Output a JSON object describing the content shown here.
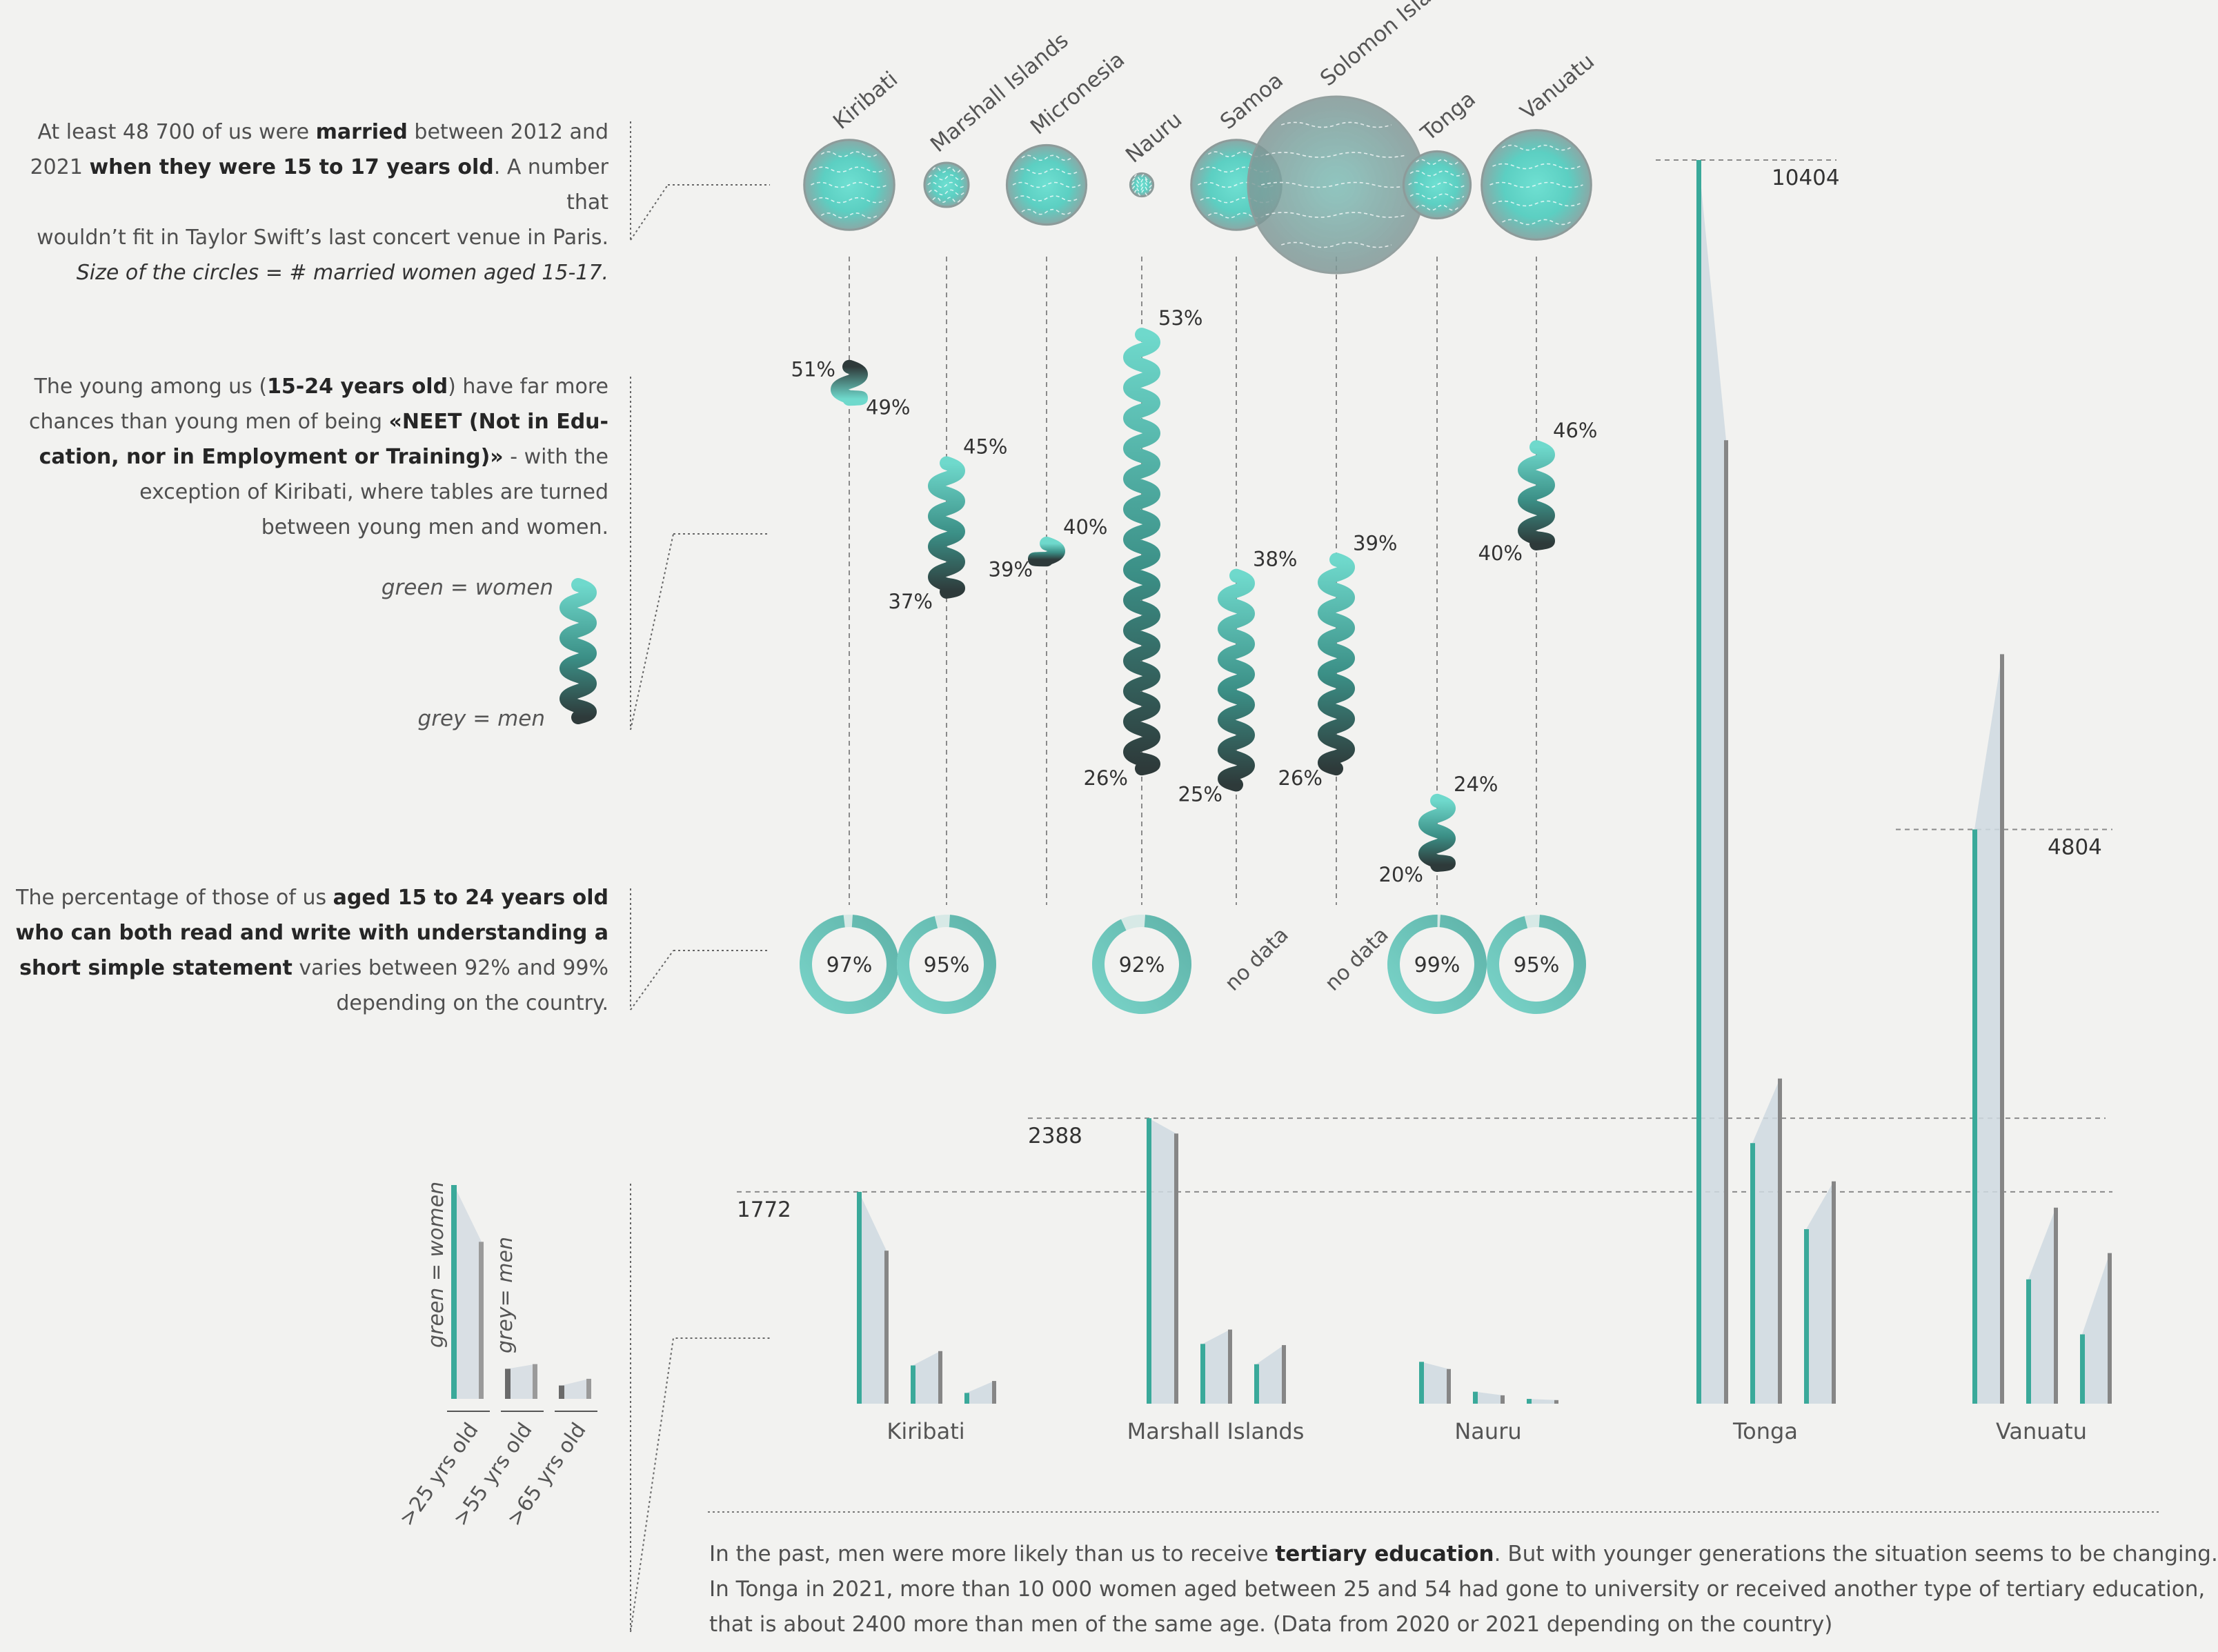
{
  "annotations": {
    "marriage": {
      "l1a": "At least 48 700 of us were ",
      "l1b": "married",
      "l1c": " between 2012 and",
      "l2a": "2021 ",
      "l2b": "when they were 15 to 17 years old",
      "l2c": ". A number that",
      "l3": "wouldn’t fit in Taylor Swift’s last concert venue in Paris.",
      "l4": "Size of the circles = # married women aged 15-17."
    },
    "neet": {
      "l1a": "The young among us (",
      "l1b": "15-24 years old",
      "l1c": ") have far more",
      "l2a": "chances than young men of being ",
      "l2b": "«NEET (Not in Edu-",
      "l3a": "cation, nor in Employment or Training)»",
      "l3b": " - with the",
      "l4": "exception of Kiribati, where tables are turned",
      "l5": "between young men and women."
    },
    "literacy": {
      "l1a": "The percentage of those of us ",
      "l1b": "aged 15 to 24 years old",
      "l2": "who can both read and write with understanding a",
      "l3a": "short simple statement",
      "l3b": " varies between 92% and 99%",
      "l4": "depending on the country."
    },
    "tertiary": {
      "l1a": "In the past, men were more likely than us to receive ",
      "l1b": "tertiary education",
      "l1c": ". But with younger generations the situation seems to be changing.",
      "l2": "In Tonga in 2021, more than 10 000 women aged between 25 and 54 had gone to university or received another type of tertiary education,",
      "l3": "that is about 2400 more than men of the same age.   (Data from 2020 or 2021 depending on the country)"
    }
  },
  "legend": {
    "neet_women": "green = women",
    "neet_men": "grey = men",
    "bars_women": "green = women",
    "bars_men": "grey= men",
    "ages": [
      ">25 yrs old",
      ">55 yrs old",
      ">65 yrs old"
    ]
  },
  "colors": {
    "women": "#3aa99a",
    "women_light": "#6fd9cc",
    "men": "#868686",
    "dark": "#2e3a3a"
  },
  "chart_data": [
    {
      "type": "bubble",
      "metric": "married women aged 15-17 (circle size)",
      "countries": [
        "Kiribati",
        "Marshall Islands",
        "Micronesia",
        "Nauru",
        "Samoa",
        "Solomon Islands",
        "Tonga",
        "Vanuatu"
      ],
      "relative_size": [
        0.51,
        0.25,
        0.45,
        0.13,
        0.51,
        1.0,
        0.38,
        0.62
      ]
    },
    {
      "type": "paired-range",
      "metric": "NEET rate 15-24 years old",
      "countries": [
        "Kiribati",
        "Marshall Islands",
        "Micronesia",
        "Nauru",
        "Samoa",
        "Solomon Islands",
        "Tonga",
        "Vanuatu"
      ],
      "women": [
        49,
        45,
        40,
        53,
        38,
        39,
        24,
        46
      ],
      "men": [
        51,
        37,
        39,
        26,
        25,
        26,
        20,
        40
      ],
      "women_label": [
        "49%",
        "45%",
        "40%",
        "53%",
        "38%",
        "39%",
        "24%",
        "46%"
      ],
      "men_label": [
        "51%",
        "37%",
        "39%",
        "26%",
        "25%",
        "26%",
        "20%",
        "40%"
      ]
    },
    {
      "type": "donut",
      "metric": "literacy rate 15-24 years old",
      "entries": [
        {
          "country": "Kiribati",
          "value": 97,
          "label": "97%"
        },
        {
          "country": "Marshall Islands",
          "value": 95,
          "label": "95%"
        },
        {
          "country": "Nauru",
          "value": 92,
          "label": "92%"
        },
        {
          "country": "Samoa",
          "value": null,
          "label": "no data"
        },
        {
          "country": "Solomon Islands",
          "value": null,
          "label": "no data"
        },
        {
          "country": "Tonga",
          "value": 99,
          "label": "99%"
        },
        {
          "country": "Vanuatu",
          "value": 95,
          "label": "95%"
        }
      ]
    },
    {
      "type": "bar",
      "metric": "people with tertiary education, by age group",
      "categories": [
        "Kiribati",
        "Marshall Islands",
        "Nauru",
        "Tonga",
        "Vanuatu"
      ],
      "age_groups": [
        ">25 yrs old",
        ">55 yrs old",
        ">65 yrs old"
      ],
      "series": [
        {
          "name": "green = women",
          "values": [
            [
              1772,
              320,
              90
            ],
            [
              2388,
              500,
              330
            ],
            [
              350,
              100,
              40
            ],
            [
              10404,
              2180,
              1460
            ],
            [
              4804,
              1040,
              580
            ]
          ]
        },
        {
          "name": "grey= men",
          "values": [
            [
              1280,
              440,
              190
            ],
            [
              2260,
              620,
              490
            ],
            [
              290,
              70,
              30
            ],
            [
              8060,
              2720,
              1860
            ],
            [
              6270,
              1640,
              1260
            ]
          ]
        }
      ],
      "value_labels": [
        {
          "country": "Kiribati",
          "label": "1772"
        },
        {
          "country": "Marshall Islands",
          "label": "2388"
        },
        {
          "country": "Tonga",
          "label": "10404"
        },
        {
          "country": "Vanuatu",
          "label": "4804"
        }
      ]
    }
  ]
}
